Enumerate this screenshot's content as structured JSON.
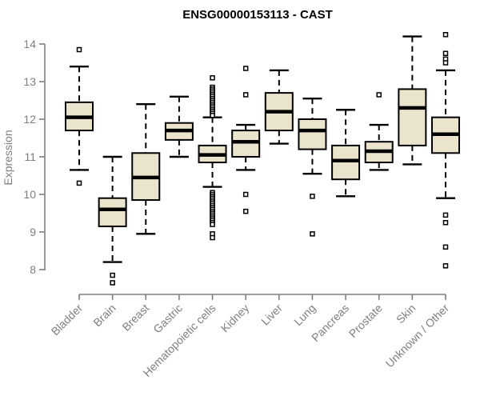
{
  "page": {
    "background": "#ffffff"
  },
  "chart_data": {
    "type": "boxplot",
    "title": "ENSG00000153113 - CAST",
    "xlabel": "",
    "ylabel": "Expression",
    "grid": false,
    "legend": "none",
    "y_ticks": [
      8,
      9,
      10,
      11,
      12,
      13,
      14
    ],
    "ylim": [
      7.5,
      14.4
    ],
    "categories": [
      "Bladder",
      "Brain",
      "Breast",
      "Gastric",
      "Hematopoietic cells",
      "Kidney",
      "Liver",
      "Lung",
      "Pancreas",
      "Prostate",
      "Skin",
      "Unknown / Other"
    ],
    "boxes": [
      {
        "category": "Bladder",
        "whisker_low": 10.65,
        "q1": 11.7,
        "median": 12.05,
        "q3": 12.45,
        "whisker_high": 13.4,
        "outliers": [
          13.85,
          10.3
        ]
      },
      {
        "category": "Brain",
        "whisker_low": 8.2,
        "q1": 9.15,
        "median": 9.6,
        "q3": 9.9,
        "whisker_high": 11.0,
        "outliers": [
          7.85,
          7.65
        ]
      },
      {
        "category": "Breast",
        "whisker_low": 8.95,
        "q1": 9.85,
        "median": 10.45,
        "q3": 11.1,
        "whisker_high": 12.4,
        "outliers": []
      },
      {
        "category": "Gastric",
        "whisker_low": 11.0,
        "q1": 11.45,
        "median": 11.7,
        "q3": 11.9,
        "whisker_high": 12.6,
        "outliers": []
      },
      {
        "category": "Hematopoietic cells",
        "whisker_low": 10.2,
        "q1": 10.85,
        "median": 11.05,
        "q3": 11.3,
        "whisker_high": 12.05,
        "outliers": [
          13.1,
          12.85,
          12.8,
          12.75,
          12.7,
          12.65,
          12.6,
          12.55,
          12.5,
          12.45,
          12.4,
          12.35,
          12.3,
          12.25,
          12.2,
          12.15,
          12.1,
          10.05,
          10.0,
          9.95,
          9.9,
          9.85,
          9.8,
          9.75,
          9.7,
          9.65,
          9.6,
          9.55,
          9.5,
          9.45,
          9.4,
          9.35,
          9.3,
          9.25,
          9.2,
          8.95,
          8.85
        ]
      },
      {
        "category": "Kidney",
        "whisker_low": 10.65,
        "q1": 11.0,
        "median": 11.4,
        "q3": 11.7,
        "whisker_high": 11.85,
        "outliers": [
          13.35,
          12.65,
          10.0,
          9.55
        ]
      },
      {
        "category": "Liver",
        "whisker_low": 11.35,
        "q1": 11.7,
        "median": 12.2,
        "q3": 12.7,
        "whisker_high": 13.3,
        "outliers": []
      },
      {
        "category": "Lung",
        "whisker_low": 10.55,
        "q1": 11.2,
        "median": 11.7,
        "q3": 12.0,
        "whisker_high": 12.55,
        "outliers": [
          9.95,
          8.95
        ]
      },
      {
        "category": "Pancreas",
        "whisker_low": 9.95,
        "q1": 10.4,
        "median": 10.9,
        "q3": 11.3,
        "whisker_high": 12.25,
        "outliers": []
      },
      {
        "category": "Prostate",
        "whisker_low": 10.65,
        "q1": 10.85,
        "median": 11.15,
        "q3": 11.4,
        "whisker_high": 11.85,
        "outliers": [
          12.65
        ]
      },
      {
        "category": "Skin",
        "whisker_low": 10.8,
        "q1": 11.3,
        "median": 12.3,
        "q3": 12.8,
        "whisker_high": 14.2,
        "outliers": []
      },
      {
        "category": "Unknown / Other",
        "whisker_low": 9.9,
        "q1": 11.1,
        "median": 11.6,
        "q3": 12.05,
        "whisker_high": 13.3,
        "outliers": [
          14.25,
          13.75,
          13.6,
          13.5,
          9.45,
          9.25,
          8.6,
          8.1
        ]
      }
    ],
    "colors": {
      "box_fill": "#EAE4CC",
      "box_border": "#000000",
      "median": "#000000",
      "whisker": "#000000",
      "outlier": "#000000",
      "axis": "#7f7f7f",
      "labels": "#7f7f7f",
      "title": "#000000",
      "background": "#ffffff"
    }
  }
}
